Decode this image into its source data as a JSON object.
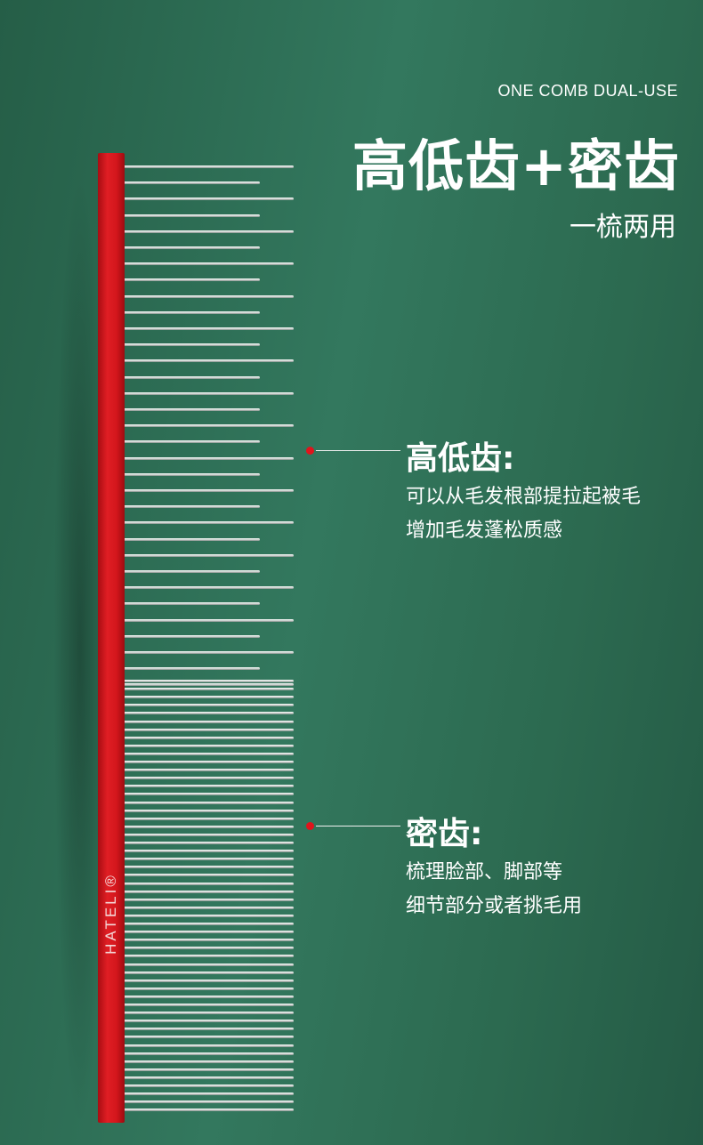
{
  "header": {
    "eyebrow": "ONE COMB DUAL-USE",
    "headline": "高低齿+密齿",
    "subhead": "一梳两用"
  },
  "product": {
    "brand": "HATELI®",
    "spine_color": "#d3161c",
    "tooth_color": "#e9eeec"
  },
  "callouts": [
    {
      "title": "高低齿:",
      "lines": [
        "可以从毛发根部提拉起被毛",
        "增加毛发蓬松质感"
      ],
      "dot_color": "#e0141c"
    },
    {
      "title": "密齿:",
      "lines": [
        "梳理脸部、脚部等",
        "细节部分或者挑毛用"
      ],
      "dot_color": "#e0141c"
    }
  ]
}
